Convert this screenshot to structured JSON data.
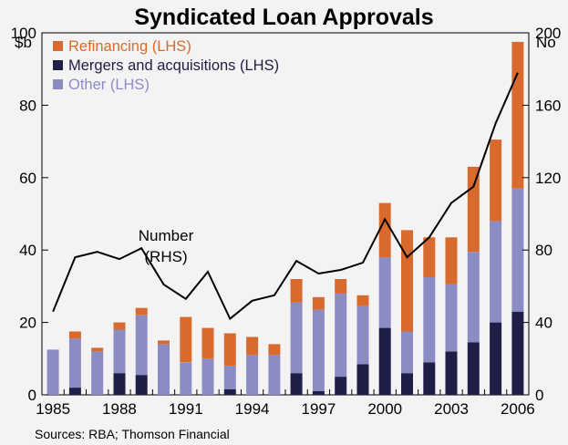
{
  "chart_data": {
    "type": "bar",
    "stacked": true,
    "title": "Syndicated Loan Approvals",
    "left_unit": "$b",
    "right_unit": "No",
    "source": "Sources: RBA; Thomson Financial",
    "x": [
      1985,
      1986,
      1987,
      1988,
      1989,
      1990,
      1991,
      1992,
      1993,
      1994,
      1995,
      1996,
      1997,
      1998,
      1999,
      2000,
      2001,
      2002,
      2003,
      2004,
      2005,
      2006
    ],
    "x_tick_labels": [
      "1985",
      "1988",
      "1991",
      "1994",
      "1997",
      "2000",
      "2003",
      "2006"
    ],
    "ylim_left": [
      0,
      100
    ],
    "y_ticks_left": [
      "0",
      "20",
      "40",
      "60",
      "80",
      "100"
    ],
    "ylim_right": [
      0,
      200
    ],
    "y_ticks_right": [
      "0",
      "40",
      "80",
      "120",
      "160",
      "200"
    ],
    "series": [
      {
        "name": "Mergers and acquisitions (LHS)",
        "axis": "left",
        "kind": "bar",
        "color": "#1e1e46",
        "values": [
          0,
          2,
          0,
          6,
          5.5,
          0,
          0,
          0,
          1.5,
          0,
          0,
          6,
          1,
          5,
          8.5,
          18.5,
          6,
          9,
          12,
          14.5,
          20,
          23
        ]
      },
      {
        "name": "Other (LHS)",
        "axis": "left",
        "kind": "bar",
        "color": "#8c8cc4",
        "values": [
          12.5,
          13.5,
          12,
          12,
          16.5,
          14,
          9,
          10,
          6.5,
          11,
          11,
          19.5,
          22.5,
          23,
          16,
          19.5,
          11.5,
          23.5,
          18.5,
          25,
          28,
          34
        ]
      },
      {
        "name": "Refinancing (LHS)",
        "axis": "left",
        "kind": "bar",
        "color": "#d86a2e",
        "values": [
          0,
          2,
          1,
          2,
          2,
          1,
          12.5,
          8.5,
          9,
          5,
          3,
          6.5,
          3.5,
          4,
          3,
          15,
          28,
          11,
          13,
          23.5,
          22.5,
          40.5
        ]
      },
      {
        "name": "Number (RHS)",
        "axis": "right",
        "kind": "line",
        "color": "#000000",
        "values": [
          46,
          76,
          79,
          75,
          81,
          61,
          53,
          68,
          42,
          52,
          55,
          74,
          67,
          69,
          73,
          97,
          76,
          87,
          106,
          115,
          150,
          178
        ]
      }
    ],
    "legend": [
      {
        "label": "Refinancing (LHS)",
        "color": "#d86a2e"
      },
      {
        "label": "Mergers and acquisitions (LHS)",
        "color": "#1e1e46"
      },
      {
        "label": "Other (LHS)",
        "color": "#8c8cc4"
      }
    ],
    "legend_position": "top-left",
    "annotation": {
      "line1": "Number",
      "line2": "(RHS)"
    }
  }
}
